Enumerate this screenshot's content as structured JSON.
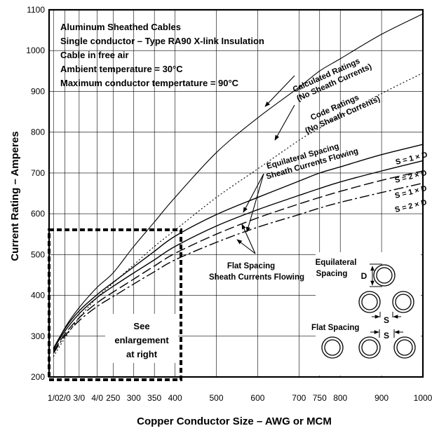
{
  "chart_data": {
    "type": "line",
    "xlabel": "Copper Conductor Size – AWG or MCM",
    "ylabel": "Current Rating – Amperes",
    "x_ticks": [
      {
        "label": "1/0",
        "value": 105.6
      },
      {
        "label": "2/0",
        "value": 133.1
      },
      {
        "label": "3/0",
        "value": 167.8
      },
      {
        "label": "4/0",
        "value": 211.6
      },
      {
        "label": "250",
        "value": 250
      },
      {
        "label": "300",
        "value": 300
      },
      {
        "label": "350",
        "value": 350
      },
      {
        "label": "400",
        "value": 400
      },
      {
        "label": "500",
        "value": 500
      },
      {
        "label": "600",
        "value": 600
      },
      {
        "label": "700",
        "value": 700
      },
      {
        "label": "750",
        "value": 750
      },
      {
        "label": "800",
        "value": 800
      },
      {
        "label": "900",
        "value": 900
      },
      {
        "label": "1000",
        "value": 1000
      }
    ],
    "xlim": [
      95,
      1000
    ],
    "ylim": [
      200,
      1100
    ],
    "y_ticks": [
      200,
      300,
      400,
      500,
      600,
      700,
      800,
      900,
      1000,
      1100
    ],
    "grid": true,
    "info_lines": [
      "Aluminum Sheathed Cables",
      "Single conductor – Type RA90 X-link Insulation",
      "Cable in free air",
      "Ambient temperature = 30°C",
      "Maximum conductor tempertature = 90°C"
    ],
    "series": [
      {
        "key": "calc",
        "style": "solid-thin",
        "x": [
          105.6,
          133.1,
          167.8,
          211.6,
          250,
          300,
          350,
          400,
          500,
          600,
          700,
          750,
          800,
          900,
          1000
        ],
        "y": [
          265,
          320,
          370,
          420,
          455,
          520,
          580,
          640,
          750,
          835,
          910,
          950,
          980,
          1040,
          1090
        ]
      },
      {
        "key": "code",
        "style": "dotted",
        "x": [
          105.6,
          133.1,
          167.8,
          211.6,
          250,
          300,
          350,
          400,
          500,
          600,
          700,
          750,
          800,
          900,
          1000
        ],
        "y": [
          250,
          295,
          345,
          395,
          430,
          475,
          520,
          560,
          640,
          710,
          780,
          810,
          840,
          895,
          945
        ]
      },
      {
        "key": "eq1",
        "style": "solid",
        "x": [
          105.6,
          133.1,
          167.8,
          211.6,
          250,
          300,
          350,
          400,
          500,
          600,
          700,
          750,
          800,
          900,
          1000
        ],
        "y": [
          270,
          318,
          362,
          402,
          432,
          470,
          508,
          545,
          598,
          640,
          680,
          700,
          715,
          745,
          770
        ]
      },
      {
        "key": "eq2",
        "style": "solid",
        "x": [
          105.6,
          133.1,
          167.8,
          211.6,
          250,
          300,
          350,
          400,
          500,
          600,
          700,
          750,
          800,
          900,
          1000
        ],
        "y": [
          268,
          312,
          355,
          395,
          422,
          455,
          487,
          520,
          570,
          610,
          645,
          662,
          678,
          705,
          730
        ]
      },
      {
        "key": "fl1",
        "style": "dashed",
        "x": [
          105.6,
          133.1,
          167.8,
          211.6,
          250,
          300,
          350,
          400,
          500,
          600,
          700,
          750,
          800,
          900,
          1000
        ],
        "y": [
          262,
          305,
          345,
          382,
          408,
          440,
          472,
          503,
          550,
          590,
          624,
          640,
          655,
          682,
          705
        ]
      },
      {
        "key": "fl2",
        "style": "dashdot",
        "x": [
          105.6,
          133.1,
          167.8,
          211.6,
          250,
          300,
          350,
          400,
          500,
          600,
          700,
          750,
          800,
          900,
          1000
        ],
        "y": [
          258,
          300,
          338,
          373,
          397,
          428,
          458,
          487,
          530,
          567,
          598,
          614,
          628,
          652,
          675
        ]
      }
    ],
    "annotations": {
      "calc_line1": "Calculated Ratings",
      "calc_line2": "(No Sheath Currents)",
      "code_line1": "Code Ratings",
      "code_line2": "(No Sheath Currents)",
      "eq_line1": "Equilateral Spacing",
      "eq_line2": "Sheath Currents Flowing",
      "flat_line1": "Flat Spacing",
      "flat_line2": "Sheath Currents Flowing",
      "s1d_a": "S = 1 × D",
      "s2d_a": "S = 2 × D",
      "s1d_b": "S = 1 × D",
      "s2d_b": "S = 2 × D",
      "enlarge_1": "See",
      "enlarge_2": "enlargement",
      "enlarge_3": "at right",
      "inset_eq1": "Equilateral",
      "inset_eq2": "Spacing",
      "inset_flat": "Flat Spacing",
      "inset_d": "D",
      "inset_s1": "S",
      "inset_s2": "S"
    }
  }
}
